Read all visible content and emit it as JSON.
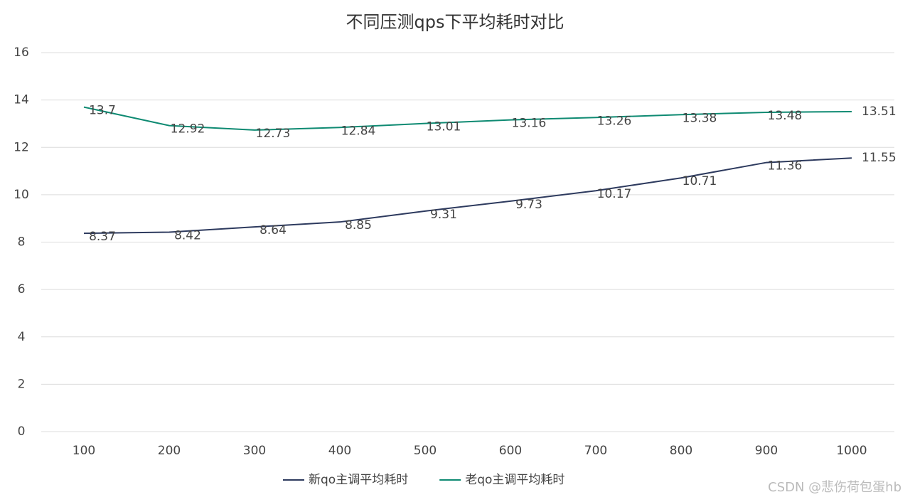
{
  "chart_data": {
    "type": "line",
    "title": "不同压测qps下平均耗时对比",
    "categories": [
      "100",
      "200",
      "300",
      "400",
      "500",
      "600",
      "700",
      "800",
      "900",
      "1000"
    ],
    "series": [
      {
        "name": "新qo主调平均耗时",
        "color": "#2d3a5e",
        "values": [
          8.37,
          8.42,
          8.64,
          8.85,
          9.31,
          9.73,
          10.17,
          10.71,
          11.36,
          11.55
        ]
      },
      {
        "name": "老qo主调平均耗时",
        "color": "#0e8a72",
        "values": [
          13.7,
          12.92,
          12.73,
          12.84,
          13.01,
          13.16,
          13.26,
          13.38,
          13.48,
          13.51
        ]
      }
    ],
    "ylim": [
      0,
      16
    ],
    "yticks": [
      0,
      2,
      4,
      6,
      8,
      10,
      12,
      14,
      16
    ],
    "grid": true,
    "legend": "bottom",
    "watermark": "CSDN @悲伤荷包蛋hb"
  }
}
